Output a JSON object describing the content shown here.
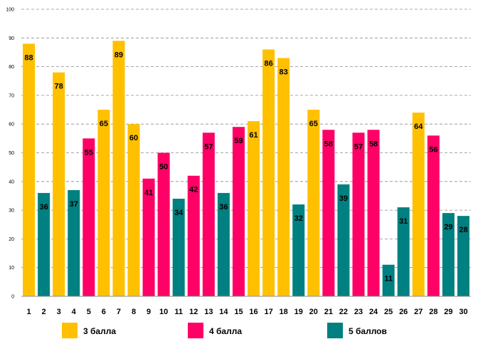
{
  "chart_data": {
    "type": "bar",
    "title": "",
    "xlabel": "",
    "ylabel": "",
    "ylim": [
      0,
      100
    ],
    "y_ticks": [
      0,
      10,
      20,
      30,
      40,
      50,
      60,
      70,
      80,
      90,
      100
    ],
    "grid": true,
    "legend_position": "bottom",
    "categories": [
      "1",
      "2",
      "3",
      "4",
      "5",
      "6",
      "7",
      "8",
      "9",
      "10",
      "11",
      "12",
      "13",
      "14",
      "15",
      "16",
      "17",
      "18",
      "19",
      "20",
      "21",
      "22",
      "23",
      "24",
      "25",
      "26",
      "27",
      "28",
      "29",
      "30"
    ],
    "values": [
      88,
      36,
      78,
      37,
      55,
      65,
      89,
      60,
      41,
      50,
      34,
      42,
      57,
      36,
      59,
      61,
      86,
      83,
      32,
      65,
      58,
      39,
      57,
      58,
      11,
      31,
      64,
      56,
      29,
      28
    ],
    "series_index": [
      0,
      2,
      0,
      2,
      1,
      0,
      0,
      0,
      1,
      1,
      2,
      1,
      1,
      2,
      1,
      0,
      0,
      0,
      2,
      0,
      1,
      2,
      1,
      1,
      2,
      2,
      0,
      1,
      2,
      2
    ],
    "series": [
      {
        "name": "3 балла",
        "color": "#FFC000"
      },
      {
        "name": "4 балла",
        "color": "#FF0066"
      },
      {
        "name": "5 баллов",
        "color": "#008080"
      }
    ]
  }
}
